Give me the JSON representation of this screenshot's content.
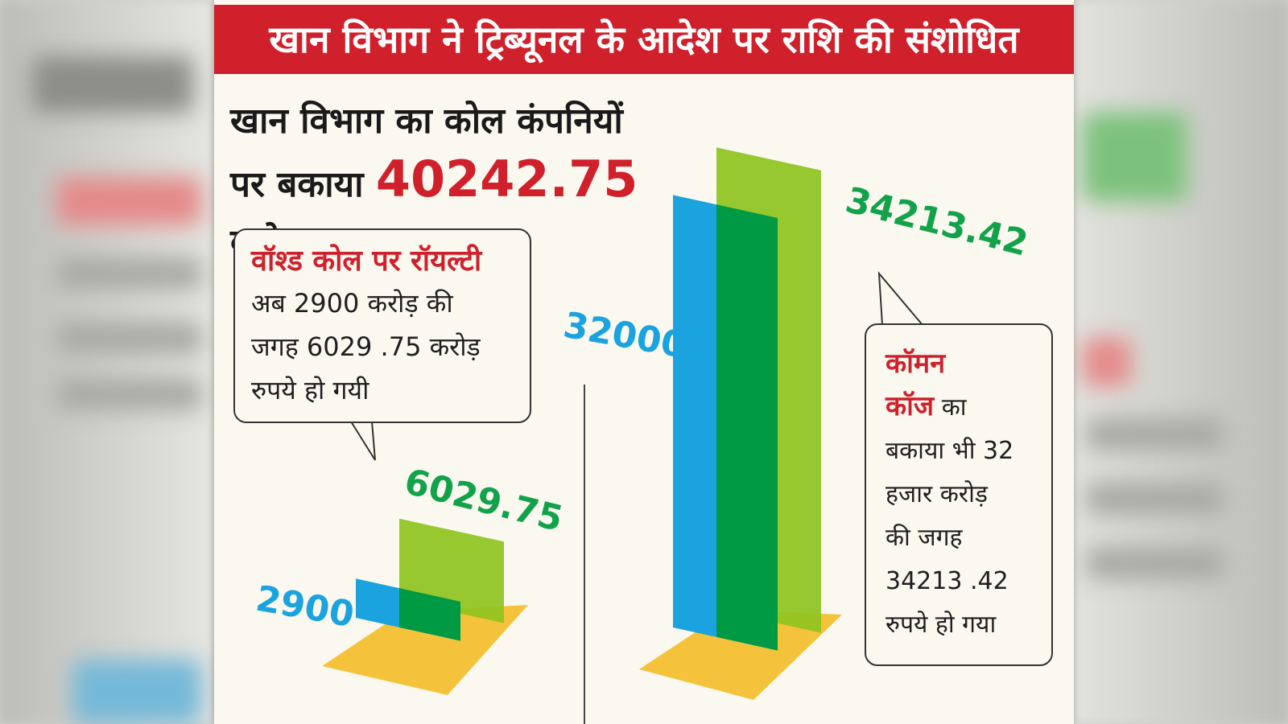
{
  "banner_title": "खान विभाग ने ट्रिब्यूनल के आदेश पर राशि की संशोधित",
  "headline": {
    "line1": "खान विभाग का कोल कंपनियों",
    "line2_prefix": "पर बकाया",
    "amount": "40242.75",
    "line2_suffix": "करोड़"
  },
  "callout_left": {
    "heading": "वॉश्ड कोल पर रॉयल्टी",
    "body_lines": [
      "अब 2900 करोड़ की",
      "जगह 6029 .75 करोड़",
      "रुपये हो गयी"
    ]
  },
  "callout_right": {
    "heading_line1": "कॉमन",
    "heading_line2": "कॉज",
    "heading_line2_suffix": "का",
    "body_lines": [
      "बकाया भी 32",
      "हजार करोड़",
      "की जगह",
      "34213 .42",
      "रुपये हो गया"
    ]
  },
  "colors": {
    "banner_red": "#d0202b",
    "old_value_blue": "#1aa3df",
    "new_value_green": "#8fc31f",
    "overlap_green": "#009a44",
    "base_yellow": "#f5c33b",
    "label_green": "#12a24a"
  },
  "chart_data": [
    {
      "type": "bar",
      "categories": [
        "वॉश्ड कोल पर रॉयल्टी"
      ],
      "series": [
        {
          "values": [
            2900
          ],
          "label": "2900"
        },
        {
          "values": [
            6029.75
          ],
          "label": "6029.75"
        }
      ]
    },
    {
      "type": "bar",
      "categories": [
        "कॉमन कॉज"
      ],
      "series": [
        {
          "values": [
            32000
          ],
          "label": "32000"
        },
        {
          "values": [
            34213.42
          ],
          "label": "34213.42"
        }
      ]
    }
  ]
}
